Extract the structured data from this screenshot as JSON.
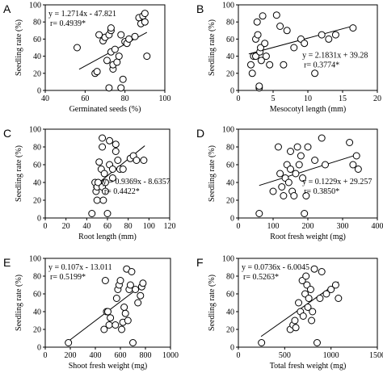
{
  "chart_data": [
    {
      "type": "scatter",
      "panel": "A",
      "xlabel": "Germinated seeds (%)",
      "ylabel": "Seedling rate (%)",
      "xlim": [
        40,
        100
      ],
      "ylim": [
        0,
        100
      ],
      "xticks": [
        40,
        60,
        80,
        100
      ],
      "yticks": [
        0,
        20,
        40,
        60,
        80,
        100
      ],
      "eq_label": "y = 1.2714x - 47.821",
      "r_label": "r= 0.4939*",
      "eq_pos": "top-left",
      "trend": {
        "slope": 1.2714,
        "intercept": -47.821,
        "x_range": [
          57,
          91
        ]
      },
      "x": [
        56,
        65,
        66,
        67,
        69,
        70,
        71,
        72,
        72,
        73,
        73,
        73,
        74,
        74,
        75,
        76,
        77,
        78,
        78,
        79,
        80,
        81,
        82,
        85,
        87,
        88,
        89,
        90,
        90,
        91
      ],
      "y": [
        50,
        20,
        22,
        65,
        58,
        62,
        35,
        3,
        65,
        70,
        73,
        45,
        25,
        30,
        48,
        33,
        40,
        3,
        65,
        13,
        57,
        55,
        60,
        63,
        85,
        78,
        87,
        90,
        80,
        40
      ]
    },
    {
      "type": "scatter",
      "panel": "B",
      "xlabel": "Mesocotyl length (mm)",
      "ylabel": "Seedling rate (%)",
      "xlim": [
        0,
        20
      ],
      "ylim": [
        0,
        100
      ],
      "xticks": [
        0,
        5,
        10,
        15,
        20
      ],
      "yticks": [
        0,
        20,
        40,
        60,
        80,
        100
      ],
      "eq_label": "y = 2.1831x + 39.28",
      "r_label": "r= 0.3774*",
      "eq_pos": "center-right",
      "trend": {
        "slope": 2.1831,
        "intercept": 39.28,
        "x_range": [
          1.5,
          16.5
        ]
      },
      "x": [
        1.8,
        2.0,
        2.2,
        2.5,
        2.5,
        2.7,
        2.8,
        3.0,
        3.0,
        3.1,
        3.2,
        3.3,
        3.5,
        3.8,
        4.0,
        4.5,
        5.5,
        6.0,
        6.5,
        7.0,
        8.0,
        9.0,
        9.5,
        11.0,
        12.0,
        13.0,
        14.0,
        16.5
      ],
      "y": [
        30,
        20,
        40,
        40,
        60,
        80,
        65,
        3,
        5,
        45,
        50,
        35,
        87,
        55,
        40,
        30,
        88,
        75,
        30,
        70,
        50,
        60,
        55,
        20,
        65,
        60,
        65,
        73
      ]
    },
    {
      "type": "scatter",
      "panel": "C",
      "xlabel": "Root length (mm)",
      "ylabel": "Seedling rate (%)",
      "xlim": [
        0,
        120
      ],
      "ylim": [
        0,
        100
      ],
      "xticks": [
        0,
        20,
        40,
        60,
        80,
        100,
        120
      ],
      "yticks": [
        0,
        20,
        40,
        60,
        80,
        100
      ],
      "eq_label": "y = 0.9369x - 8.6357",
      "r_label": "r= 0.4422*",
      "eq_pos": "center-right",
      "trend": {
        "slope": 0.9369,
        "intercept": -8.6357,
        "x_range": [
          46,
          96
        ]
      },
      "x": [
        45,
        48,
        49,
        50,
        50,
        51,
        52,
        54,
        55,
        55,
        55,
        56,
        57,
        58,
        58,
        60,
        62,
        62,
        65,
        65,
        68,
        68,
        70,
        72,
        75,
        82,
        85,
        88,
        95
      ],
      "y": [
        5,
        40,
        30,
        35,
        20,
        40,
        63,
        55,
        35,
        80,
        90,
        20,
        50,
        40,
        30,
        5,
        60,
        87,
        45,
        55,
        75,
        83,
        65,
        55,
        55,
        67,
        70,
        65,
        65
      ]
    },
    {
      "type": "scatter",
      "panel": "D",
      "xlabel": "Root fresh weight (mg)",
      "ylabel": "Seedling rate (%)",
      "xlim": [
        0,
        400
      ],
      "ylim": [
        0,
        100
      ],
      "xticks": [
        0,
        100,
        200,
        300,
        400
      ],
      "yticks": [
        0,
        20,
        40,
        60,
        80,
        100
      ],
      "eq_label": "y = 0.1229x + 29.257",
      "r_label": "r= 0.3850*",
      "eq_pos": "center-right",
      "trend": {
        "slope": 0.1229,
        "intercept": 29.257,
        "x_range": [
          60,
          345
        ]
      },
      "x": [
        60,
        100,
        115,
        120,
        125,
        130,
        135,
        140,
        145,
        150,
        150,
        155,
        160,
        165,
        170,
        175,
        180,
        185,
        190,
        195,
        200,
        220,
        240,
        250,
        320,
        330,
        340,
        345
      ],
      "y": [
        5,
        30,
        80,
        50,
        35,
        25,
        45,
        60,
        40,
        75,
        55,
        30,
        25,
        50,
        80,
        60,
        70,
        45,
        5,
        25,
        80,
        65,
        90,
        60,
        85,
        60,
        70,
        55
      ]
    },
    {
      "type": "scatter",
      "panel": "E",
      "xlabel": "Shoot fresh weight (mg)",
      "ylabel": "Seedling rate (%)",
      "xlim": [
        0,
        1000
      ],
      "ylim": [
        0,
        100
      ],
      "xticks": [
        0,
        200,
        400,
        600,
        800,
        1000
      ],
      "yticks": [
        0,
        20,
        40,
        60,
        80,
        100
      ],
      "eq_label": "y = 0.107x - 13.011",
      "r_label": "r= 0.5199*",
      "eq_pos": "top-left",
      "trend": {
        "slope": 0.107,
        "intercept": -13.011,
        "x_range": [
          180,
          780
        ]
      },
      "x": [
        185,
        470,
        480,
        490,
        500,
        510,
        520,
        560,
        570,
        580,
        590,
        600,
        610,
        620,
        630,
        640,
        650,
        660,
        670,
        680,
        690,
        700,
        720,
        740,
        760,
        770,
        780
      ],
      "y": [
        5,
        20,
        75,
        40,
        40,
        25,
        33,
        25,
        55,
        65,
        70,
        75,
        20,
        28,
        45,
        38,
        88,
        30,
        65,
        70,
        85,
        5,
        65,
        50,
        58,
        68,
        72
      ],
      "label_pos": "point-labels-none"
    },
    {
      "type": "scatter",
      "panel": "F",
      "xlabel": "Total fresh weight (mg)",
      "ylabel": "Seedling rate (%)",
      "xlim": [
        0,
        1500
      ],
      "ylim": [
        0,
        100
      ],
      "xticks": [
        0,
        500,
        1000,
        1500
      ],
      "yticks": [
        0,
        20,
        40,
        60,
        80,
        100
      ],
      "eq_label": "y = 0.0736x - 6.0045",
      "r_label": "r= 0.5263*",
      "eq_pos": "top-left",
      "trend": {
        "slope": 0.0736,
        "intercept": -6.0045,
        "x_range": [
          245,
          1080
        ]
      },
      "x": [
        250,
        560,
        590,
        610,
        620,
        650,
        670,
        690,
        700,
        720,
        730,
        740,
        750,
        760,
        780,
        790,
        800,
        820,
        850,
        880,
        900,
        950,
        1000,
        1050,
        1080
      ],
      "y": [
        5,
        20,
        25,
        30,
        22,
        50,
        40,
        75,
        35,
        60,
        80,
        70,
        45,
        55,
        65,
        30,
        40,
        88,
        5,
        55,
        85,
        60,
        65,
        70,
        55
      ]
    }
  ]
}
